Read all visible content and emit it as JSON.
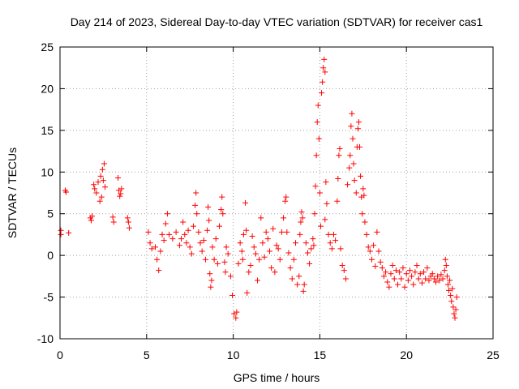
{
  "chart_data": {
    "type": "scatter",
    "title": "Day 214 of 2023, Sidereal Day-to-day VTEC variation (SDTVAR) for receiver cas1",
    "xlabel": "GPS time / hours",
    "ylabel": "SDTVAR / TECUs",
    "xlim": [
      0,
      25
    ],
    "ylim": [
      -10,
      25
    ],
    "xticks": [
      "0",
      "5",
      "10",
      "15",
      "20",
      "25"
    ],
    "yticks": [
      "-10",
      "-5",
      "0",
      "5",
      "10",
      "15",
      "20",
      "25"
    ],
    "grid": true,
    "marker": "+",
    "series": [
      {
        "name": "SDTVAR",
        "color": "#ff0000",
        "points": [
          [
            0.05,
            3.0
          ],
          [
            0.05,
            2.5
          ],
          [
            0.3,
            7.8
          ],
          [
            0.35,
            7.6
          ],
          [
            0.5,
            2.7
          ],
          [
            1.75,
            4.5
          ],
          [
            1.8,
            4.2
          ],
          [
            1.85,
            4.7
          ],
          [
            1.95,
            8.5
          ],
          [
            2.0,
            8.0
          ],
          [
            2.1,
            7.5
          ],
          [
            2.2,
            8.8
          ],
          [
            2.3,
            6.5
          ],
          [
            2.35,
            9.5
          ],
          [
            2.4,
            7.0
          ],
          [
            2.45,
            10.3
          ],
          [
            2.5,
            9.0
          ],
          [
            2.55,
            11.0
          ],
          [
            2.6,
            8.2
          ],
          [
            3.05,
            4.6
          ],
          [
            3.1,
            4.0
          ],
          [
            3.35,
            9.3
          ],
          [
            3.4,
            7.8
          ],
          [
            3.45,
            7.1
          ],
          [
            3.5,
            7.4
          ],
          [
            3.55,
            8.0
          ],
          [
            3.9,
            4.5
          ],
          [
            3.95,
            4.0
          ],
          [
            4.0,
            3.3
          ],
          [
            5.1,
            2.8
          ],
          [
            5.2,
            1.5
          ],
          [
            5.3,
            0.8
          ],
          [
            5.5,
            1.0
          ],
          [
            5.6,
            -0.5
          ],
          [
            5.7,
            -1.8
          ],
          [
            5.8,
            0.5
          ],
          [
            5.9,
            2.5
          ],
          [
            6.0,
            1.8
          ],
          [
            6.1,
            3.8
          ],
          [
            6.2,
            5.0
          ],
          [
            6.3,
            2.5
          ],
          [
            6.5,
            2.0
          ],
          [
            6.7,
            2.8
          ],
          [
            6.9,
            1.2
          ],
          [
            7.0,
            2.0
          ],
          [
            7.1,
            4.0
          ],
          [
            7.2,
            2.5
          ],
          [
            7.3,
            1.5
          ],
          [
            7.4,
            3.0
          ],
          [
            7.5,
            1.0
          ],
          [
            7.6,
            0.2
          ],
          [
            7.7,
            3.5
          ],
          [
            7.8,
            6.0
          ],
          [
            7.85,
            7.5
          ],
          [
            7.9,
            5.0
          ],
          [
            8.0,
            2.8
          ],
          [
            8.1,
            1.5
          ],
          [
            8.2,
            0.5
          ],
          [
            8.3,
            1.8
          ],
          [
            8.4,
            -0.5
          ],
          [
            8.5,
            3.0
          ],
          [
            8.55,
            5.8
          ],
          [
            8.6,
            4.2
          ],
          [
            8.65,
            -2.2
          ],
          [
            8.7,
            -3.8
          ],
          [
            8.75,
            -3.0
          ],
          [
            8.8,
            1.0
          ],
          [
            8.9,
            -0.5
          ],
          [
            9.0,
            2.0
          ],
          [
            9.1,
            -1.0
          ],
          [
            9.2,
            3.5
          ],
          [
            9.3,
            5.5
          ],
          [
            9.35,
            7.0
          ],
          [
            9.4,
            5.0
          ],
          [
            9.5,
            -0.8
          ],
          [
            9.55,
            -2.0
          ],
          [
            9.6,
            1.0
          ],
          [
            9.7,
            0.2
          ],
          [
            9.85,
            -2.5
          ],
          [
            9.95,
            -4.8
          ],
          [
            10.05,
            -7.0
          ],
          [
            10.15,
            -7.5
          ],
          [
            10.2,
            -6.8
          ],
          [
            10.3,
            -1.0
          ],
          [
            10.4,
            1.5
          ],
          [
            10.5,
            0.5
          ],
          [
            10.55,
            -0.5
          ],
          [
            10.6,
            2.5
          ],
          [
            10.7,
            6.3
          ],
          [
            10.75,
            3.0
          ],
          [
            10.8,
            -4.5
          ],
          [
            10.9,
            -2.0
          ],
          [
            11.0,
            -1.2
          ],
          [
            11.1,
            2.3
          ],
          [
            11.2,
            1.0
          ],
          [
            11.3,
            0.2
          ],
          [
            11.4,
            -3.0
          ],
          [
            11.5,
            -0.5
          ],
          [
            11.6,
            4.5
          ],
          [
            11.7,
            1.5
          ],
          [
            11.8,
            -0.2
          ],
          [
            11.9,
            2.8
          ],
          [
            12.0,
            2.0
          ],
          [
            12.1,
            0.5
          ],
          [
            12.2,
            -1.5
          ],
          [
            12.3,
            3.2
          ],
          [
            12.4,
            -2.0
          ],
          [
            12.5,
            1.2
          ],
          [
            12.6,
            0.8
          ],
          [
            12.7,
            -0.5
          ],
          [
            12.8,
            2.8
          ],
          [
            12.9,
            4.5
          ],
          [
            13.0,
            6.5
          ],
          [
            13.05,
            7.0
          ],
          [
            13.1,
            2.8
          ],
          [
            13.2,
            0.3
          ],
          [
            13.3,
            -1.5
          ],
          [
            13.4,
            -2.8
          ],
          [
            13.5,
            -0.5
          ],
          [
            13.6,
            1.5
          ],
          [
            13.7,
            -3.5
          ],
          [
            13.8,
            -2.5
          ],
          [
            13.85,
            2.5
          ],
          [
            13.9,
            4.0
          ],
          [
            13.95,
            5.2
          ],
          [
            14.0,
            4.5
          ],
          [
            14.05,
            -4.3
          ],
          [
            14.1,
            -3.5
          ],
          [
            14.2,
            1.5
          ],
          [
            14.3,
            0.3
          ],
          [
            14.4,
            -1.0
          ],
          [
            14.5,
            0.8
          ],
          [
            14.6,
            2.0
          ],
          [
            14.65,
            1.2
          ],
          [
            14.7,
            5.0
          ],
          [
            14.75,
            8.3
          ],
          [
            14.8,
            12.0
          ],
          [
            14.85,
            16.0
          ],
          [
            14.9,
            18.0
          ],
          [
            14.95,
            14.0
          ],
          [
            15.0,
            7.5
          ],
          [
            15.05,
            3.5
          ],
          [
            15.1,
            19.5
          ],
          [
            15.15,
            20.8
          ],
          [
            15.2,
            22.5
          ],
          [
            15.25,
            23.5
          ],
          [
            15.3,
            22.0
          ],
          [
            15.3,
            4.3
          ],
          [
            15.35,
            8.8
          ],
          [
            15.4,
            6.2
          ],
          [
            15.5,
            2.5
          ],
          [
            15.6,
            1.5
          ],
          [
            15.7,
            0.8
          ],
          [
            15.8,
            2.5
          ],
          [
            15.9,
            1.8
          ],
          [
            16.0,
            6.5
          ],
          [
            16.05,
            9.2
          ],
          [
            16.1,
            12.0
          ],
          [
            16.15,
            12.8
          ],
          [
            16.2,
            0.8
          ],
          [
            16.3,
            -1.2
          ],
          [
            16.4,
            -1.8
          ],
          [
            16.5,
            -2.8
          ],
          [
            16.6,
            8.5
          ],
          [
            16.7,
            10.5
          ],
          [
            16.75,
            12.0
          ],
          [
            16.8,
            15.5
          ],
          [
            16.85,
            17.0
          ],
          [
            16.9,
            14.0
          ],
          [
            16.95,
            11.0
          ],
          [
            17.0,
            9.0
          ],
          [
            17.1,
            7.5
          ],
          [
            17.15,
            13.0
          ],
          [
            17.2,
            15.2
          ],
          [
            17.25,
            16.0
          ],
          [
            17.3,
            13.0
          ],
          [
            17.35,
            9.5
          ],
          [
            17.4,
            7.0
          ],
          [
            17.45,
            5.0
          ],
          [
            17.5,
            8.0
          ],
          [
            17.55,
            7.2
          ],
          [
            17.6,
            4.0
          ],
          [
            17.7,
            2.5
          ],
          [
            17.8,
            1.0
          ],
          [
            17.9,
            0.5
          ],
          [
            18.0,
            -0.5
          ],
          [
            18.1,
            1.2
          ],
          [
            18.2,
            -1.3
          ],
          [
            18.3,
            2.8
          ],
          [
            18.4,
            0.5
          ],
          [
            18.5,
            -0.8
          ],
          [
            18.6,
            -1.5
          ],
          [
            18.7,
            -2.5
          ],
          [
            18.8,
            -2.0
          ],
          [
            18.9,
            -3.2
          ],
          [
            19.0,
            -3.8
          ],
          [
            19.1,
            -2.2
          ],
          [
            19.2,
            -1.2
          ],
          [
            19.3,
            -2.8
          ],
          [
            19.4,
            -1.8
          ],
          [
            19.5,
            -3.5
          ],
          [
            19.6,
            -2.0
          ],
          [
            19.7,
            -2.8
          ],
          [
            19.8,
            -1.5
          ],
          [
            19.9,
            -3.8
          ],
          [
            20.0,
            -2.2
          ],
          [
            20.1,
            -3.0
          ],
          [
            20.2,
            -1.8
          ],
          [
            20.3,
            -2.5
          ],
          [
            20.4,
            -3.5
          ],
          [
            20.5,
            -2.0
          ],
          [
            20.6,
            -1.2
          ],
          [
            20.7,
            -2.8
          ],
          [
            20.8,
            -2.2
          ],
          [
            20.9,
            -3.3
          ],
          [
            21.0,
            -2.0
          ],
          [
            21.1,
            -2.8
          ],
          [
            21.2,
            -1.5
          ],
          [
            21.3,
            -3.0
          ],
          [
            21.4,
            -2.5
          ],
          [
            21.5,
            -2.2
          ],
          [
            21.6,
            -2.8
          ],
          [
            21.7,
            -3.2
          ],
          [
            21.8,
            -2.5
          ],
          [
            21.9,
            -3.0
          ],
          [
            22.0,
            -2.3
          ],
          [
            22.1,
            -2.8
          ],
          [
            22.2,
            -1.8
          ],
          [
            22.25,
            -0.5
          ],
          [
            22.3,
            -1.2
          ],
          [
            22.35,
            -2.5
          ],
          [
            22.4,
            -3.5
          ],
          [
            22.45,
            -4.2
          ],
          [
            22.5,
            -3.0
          ],
          [
            22.55,
            -4.8
          ],
          [
            22.6,
            -5.5
          ],
          [
            22.65,
            -4.0
          ],
          [
            22.7,
            -6.2
          ],
          [
            22.75,
            -7.0
          ],
          [
            22.8,
            -7.5
          ],
          [
            22.85,
            -6.5
          ],
          [
            22.9,
            -5.0
          ]
        ]
      }
    ]
  }
}
